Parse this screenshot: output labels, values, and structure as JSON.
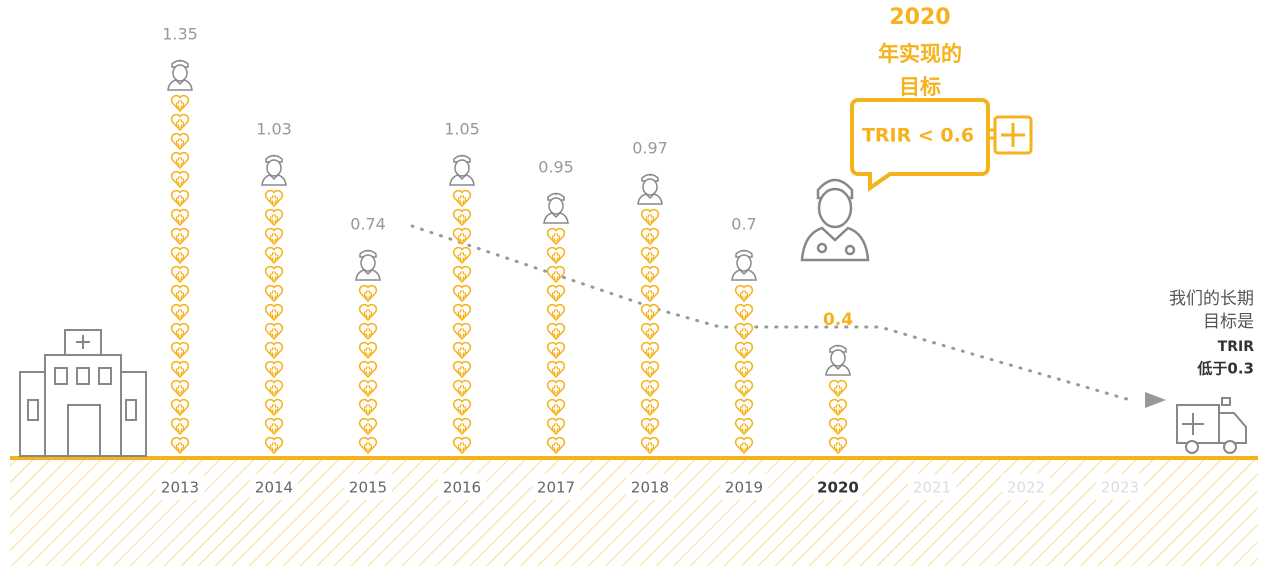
{
  "chart_data": {
    "type": "pictograph",
    "categories": [
      "2013",
      "2014",
      "2015",
      "2016",
      "2017",
      "2018",
      "2019",
      "2020",
      "2021",
      "2022",
      "2023"
    ],
    "values": [
      1.35,
      1.03,
      0.74,
      1.05,
      0.95,
      0.97,
      0.7,
      0.4,
      null,
      null,
      null
    ],
    "color": "#f5b21b",
    "goal_year": "2020",
    "goal_label": [
      "年实现的",
      "目标"
    ],
    "goal_value": "TRIR < 0.6",
    "long_term_goal": [
      "我们的长期",
      "目标是",
      "TRIR",
      "低于0.3"
    ]
  }
}
